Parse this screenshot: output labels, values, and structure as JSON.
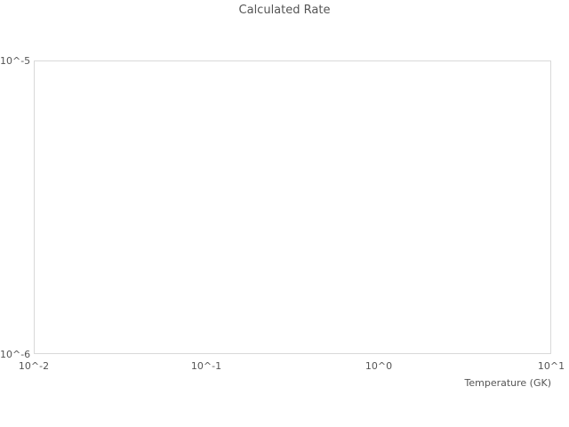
{
  "chart_data": {
    "type": "line",
    "title": "Calculated Rate",
    "xlabel": "Temperature (GK)",
    "ylabel": "",
    "x_scale": "log",
    "y_scale": "log",
    "xlim": [
      0.01,
      10
    ],
    "ylim": [
      1e-06,
      1e-05
    ],
    "x_ticks": [
      "10^-2",
      "10^-1",
      "10^0",
      "10^1"
    ],
    "y_ticks": [
      "10^-6",
      "10^-5"
    ],
    "series": [],
    "grid": false,
    "legend": false
  },
  "colors": {
    "background": "#ffffff",
    "text": "#555555",
    "plot_border": "#d9d9d9"
  }
}
